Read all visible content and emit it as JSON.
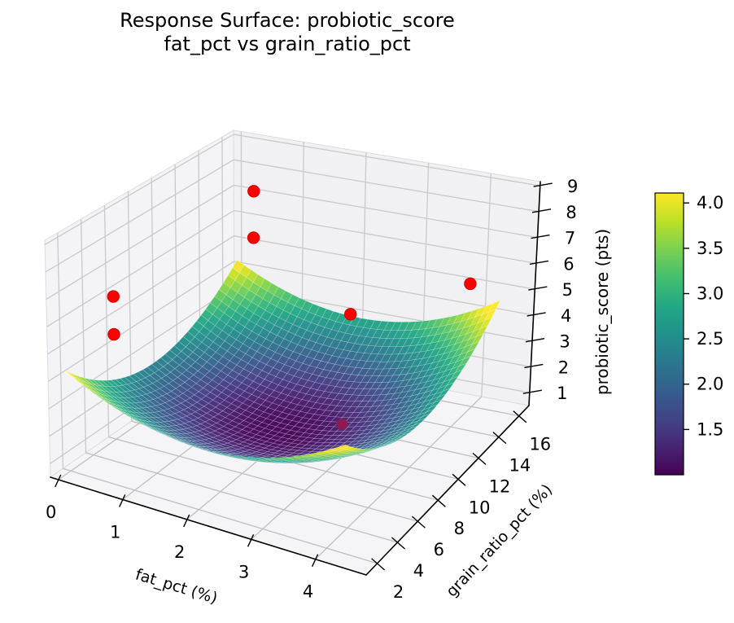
{
  "title": {
    "line1": "Response Surface: probiotic_score",
    "line2": "fat_pct vs grain_ratio_pct"
  },
  "axes": {
    "x": {
      "label": "fat_pct (%)",
      "ticks": [
        0,
        1,
        2,
        3,
        4
      ],
      "range": [
        -0.123,
        4.79
      ]
    },
    "y": {
      "label": "grain_ratio_pct (%)",
      "ticks": [
        2,
        4,
        6,
        8,
        10,
        12,
        14,
        16
      ],
      "range": [
        0.907,
        16.98
      ]
    },
    "z": {
      "label": "probiotic_score (pts)",
      "ticks": [
        1,
        2,
        3,
        4,
        5,
        6,
        7,
        8,
        9
      ],
      "range": [
        0.502,
        9.16
      ]
    }
  },
  "chart_data": {
    "type": "surface3d",
    "title": "Response Surface: probiotic_score — fat_pct vs grain_ratio_pct",
    "xlabel": "fat_pct (%)",
    "ylabel": "grain_ratio_pct (%)",
    "zlabel": "probiotic_score (pts)",
    "surface": {
      "model": "score = 1.0 + 0.33*(fat_pct-2.05)^2 + 0.0335*(grain_ratio_pct-9.2)^2",
      "z0": 1.0,
      "a": 0.33,
      "f0": 2.05,
      "b": 0.0335,
      "g0": 9.2,
      "fat_domain": [
        0.0,
        4.3
      ],
      "grain_domain": [
        1.7,
        16.6
      ],
      "color_range": [
        1.0,
        4.11
      ],
      "colormap": "viridis",
      "mesh_steps": 38
    },
    "scatter": {
      "color": "#ff0000",
      "edge_color": "#bf0000",
      "points": [
        {
          "fat_pct": 0.75,
          "grain_ratio_pct": 14,
          "probiotic_score": 8.0
        },
        {
          "fat_pct": 0.75,
          "grain_ratio_pct": 14,
          "probiotic_score": 6.2
        },
        {
          "fat_pct": 0.35,
          "grain_ratio_pct": 4,
          "probiotic_score": 6.6
        },
        {
          "fat_pct": 0.35,
          "grain_ratio_pct": 4,
          "probiotic_score": 5.2
        },
        {
          "fat_pct": 3.9,
          "grain_ratio_pct": 16,
          "probiotic_score": 5.2
        },
        {
          "fat_pct": 3.0,
          "grain_ratio_pct": 10,
          "probiotic_score": 5.7
        }
      ],
      "occluded_point": {
        "fat_pct": 2.9,
        "grain_ratio_pct": 10,
        "probiotic_score": 1.5,
        "blended_color": "#8d1a50"
      }
    },
    "colorbar": {
      "vmin": 1.0,
      "vmax": 4.11,
      "tick_values": [
        1.5,
        2.0,
        2.5,
        3.0,
        3.5,
        4.0
      ],
      "tick_labels": [
        "1.5",
        "2.0",
        "2.5",
        "3.0",
        "3.5",
        "4.0"
      ]
    }
  },
  "colors": {
    "viridis_stops": [
      "#440154",
      "#482475",
      "#414487",
      "#355f8d",
      "#2a788e",
      "#21918c",
      "#22a884",
      "#44bf70",
      "#7ad151",
      "#bddf26",
      "#fde725"
    ],
    "pane_left": "#f4f3f6",
    "pane_right": "#f1f1f4",
    "pane_floor": "#f5f5f7",
    "pane_edge": "#dcdce0",
    "grid_wall": "#c9c9cd",
    "grid_floor": "#bfbfc3",
    "axis_line": "#000000",
    "mesh_line": "rgba(255,255,255,0.32)",
    "text": "#000000",
    "background": "#ffffff"
  }
}
